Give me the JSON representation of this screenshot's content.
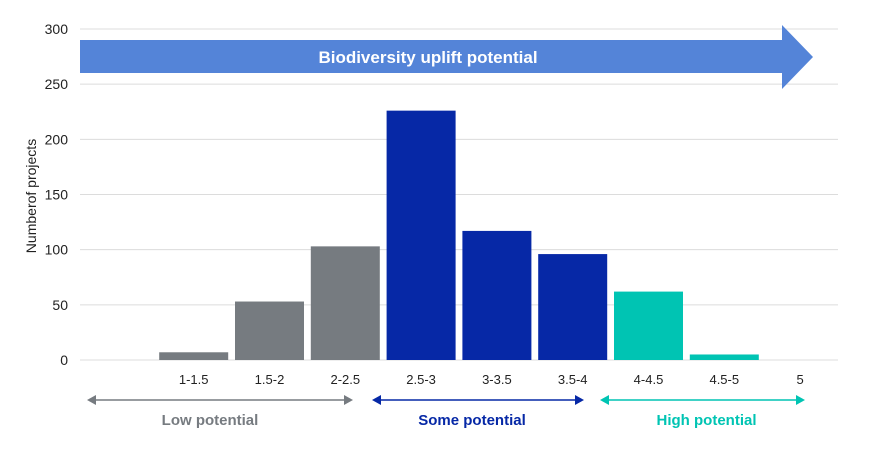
{
  "chart_data": {
    "type": "bar",
    "title": "",
    "banner": "Biodiversity uplift potential",
    "xlabel": "",
    "ylabel": "Numberof projects",
    "ylim": [
      0,
      300
    ],
    "yticks": [
      0,
      50,
      100,
      150,
      200,
      250,
      300
    ],
    "grid": true,
    "categories": [
      "1-1.5",
      "1.5-2",
      "2-2.5",
      "2.5-3",
      "3-3.5",
      "3.5-4",
      "4-4.5",
      "4.5-5",
      "5"
    ],
    "values": [
      7,
      53,
      103,
      226,
      117,
      96,
      62,
      5,
      0
    ],
    "groups": [
      {
        "label": "Low potential",
        "color": "#767b80",
        "categories": [
          "1-1.5",
          "1.5-2",
          "2-2.5"
        ]
      },
      {
        "label": "Some potential",
        "color": "#0628a6",
        "categories": [
          "2.5-3",
          "3-3.5",
          "3.5-4"
        ]
      },
      {
        "label": "High potential",
        "color": "#00c4b3",
        "categories": [
          "4-4.5",
          "4.5-5",
          "5"
        ]
      }
    ],
    "banner_color": "#5484d8"
  }
}
